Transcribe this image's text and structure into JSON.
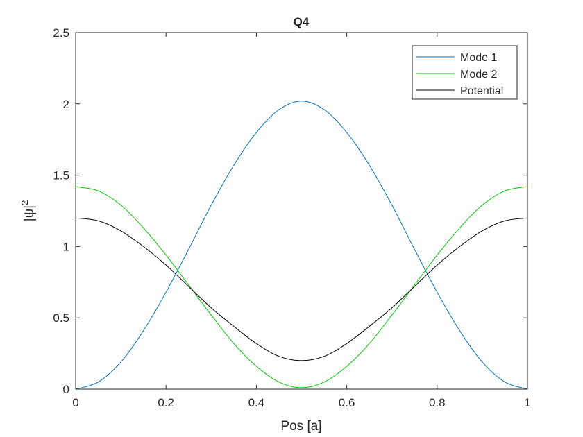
{
  "chart_data": {
    "type": "line",
    "title": "Q4",
    "xlabel": "Pos [a]",
    "ylabel": "|ψ|",
    "ylabel_superscript": "2",
    "xlim": [
      0,
      1
    ],
    "ylim": [
      0,
      2.5
    ],
    "xticks": [
      "0",
      "0.2",
      "0.4",
      "0.6",
      "0.8",
      "1"
    ],
    "yticks": [
      "0",
      "0.5",
      "1",
      "1.5",
      "2",
      "2.5"
    ],
    "xtick_values": [
      0,
      0.2,
      0.4,
      0.6,
      0.8,
      1
    ],
    "ytick_values": [
      0,
      0.5,
      1,
      1.5,
      2,
      2.5
    ],
    "grid": false,
    "legend_position": "top-right",
    "x": [
      0,
      0.05,
      0.1,
      0.15,
      0.2,
      0.25,
      0.3,
      0.35,
      0.4,
      0.45,
      0.5,
      0.55,
      0.6,
      0.65,
      0.7,
      0.75,
      0.8,
      0.85,
      0.9,
      0.95,
      1
    ],
    "series": [
      {
        "name": "Mode 1",
        "color": "#0072BD",
        "values": [
          0.0,
          0.05,
          0.19,
          0.41,
          0.68,
          0.98,
          1.29,
          1.57,
          1.8,
          1.96,
          2.02,
          1.96,
          1.8,
          1.57,
          1.29,
          0.98,
          0.68,
          0.41,
          0.19,
          0.05,
          0.0
        ]
      },
      {
        "name": "Mode 2",
        "color": "#00C800",
        "values": [
          1.42,
          1.39,
          1.29,
          1.13,
          0.94,
          0.73,
          0.52,
          0.32,
          0.16,
          0.05,
          0.01,
          0.05,
          0.16,
          0.32,
          0.52,
          0.73,
          0.94,
          1.13,
          1.29,
          1.39,
          1.42
        ]
      },
      {
        "name": "Potential",
        "color": "#000000",
        "values": [
          1.2,
          1.18,
          1.11,
          1.0,
          0.87,
          0.72,
          0.57,
          0.44,
          0.32,
          0.23,
          0.2,
          0.23,
          0.32,
          0.44,
          0.57,
          0.72,
          0.87,
          1.0,
          1.11,
          1.18,
          1.2
        ]
      }
    ]
  }
}
